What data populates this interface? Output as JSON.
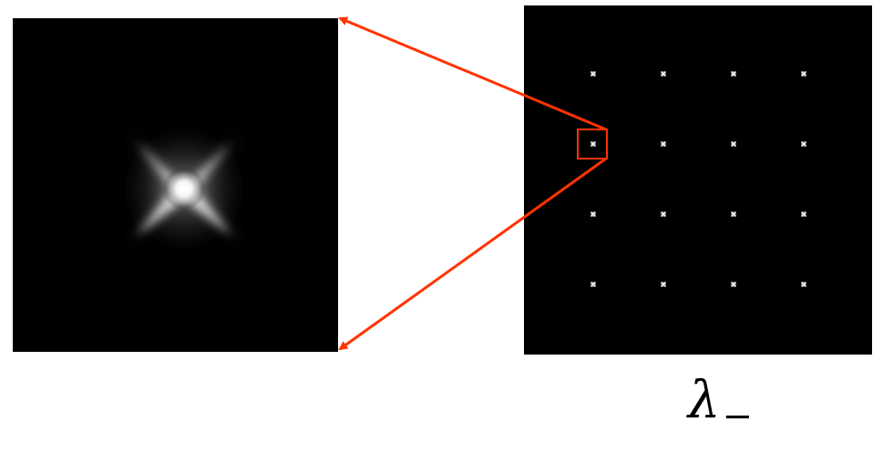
{
  "figure": {
    "label_symbol": "λ",
    "label_subscript": "−",
    "annotation_color": "#ff3300",
    "panel_background": "#000000",
    "grid": {
      "rows": 4,
      "cols": 4,
      "highlighted_row": 2,
      "highlighted_col": 1
    }
  }
}
